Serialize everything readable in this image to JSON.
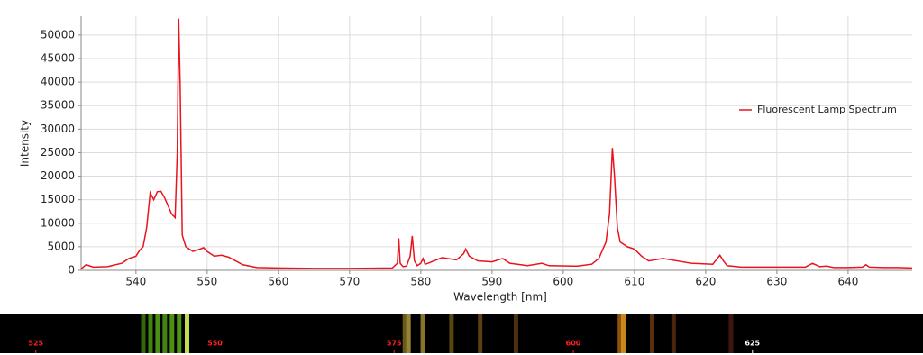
{
  "chart_data": [
    {
      "type": "line",
      "x_label": "Wavelength [nm]",
      "y_label": "Intensity",
      "xlim": [
        532.3,
        649
      ],
      "ylim": [
        0,
        54000
      ],
      "xticks": [
        540,
        550,
        560,
        570,
        580,
        590,
        600,
        610,
        620,
        630,
        640
      ],
      "yticks": [
        0,
        5000,
        10000,
        15000,
        20000,
        25000,
        30000,
        35000,
        40000,
        45000,
        50000
      ],
      "grid": true,
      "legend": "right",
      "x": [
        532.3,
        533,
        534,
        536,
        538,
        539,
        540,
        540.5,
        541,
        541.5,
        542,
        542.5,
        543,
        543.5,
        544,
        545,
        545.5,
        545.8,
        546,
        546.2,
        546.5,
        547,
        548,
        549,
        549.5,
        550,
        551,
        552,
        553,
        554,
        555,
        557,
        560,
        565,
        570,
        576,
        576.7,
        576.9,
        577.1,
        577.5,
        578,
        578.5,
        578.8,
        579.1,
        579.5,
        580,
        580.3,
        580.6,
        581,
        583,
        585,
        586,
        586.3,
        586.8,
        588,
        590,
        591.5,
        592.5,
        595,
        597,
        598,
        602,
        604,
        605,
        606,
        606.5,
        606.9,
        607.2,
        607.6,
        608,
        609,
        610,
        611,
        612,
        614,
        616,
        618,
        621,
        622,
        622.5,
        623,
        625,
        630,
        634,
        635,
        636,
        637,
        638,
        640,
        642,
        642.5,
        643,
        645,
        647,
        649
      ],
      "series": [
        {
          "name": "Fluorescent Lamp Spectrum",
          "color": "#e8141e",
          "values": [
            300,
            1200,
            700,
            800,
            1500,
            2500,
            3000,
            4200,
            5000,
            9000,
            16500,
            15000,
            16700,
            16800,
            15500,
            12000,
            11200,
            25000,
            53500,
            40000,
            7500,
            5000,
            4000,
            4500,
            4800,
            4000,
            3000,
            3200,
            2800,
            2000,
            1200,
            600,
            500,
            400,
            400,
            500,
            1500,
            6800,
            1500,
            800,
            900,
            3000,
            7300,
            2000,
            1000,
            1500,
            2500,
            1300,
            1500,
            2700,
            2200,
            3500,
            4500,
            3000,
            2000,
            1800,
            2500,
            1500,
            1000,
            1500,
            1000,
            900,
            1300,
            2500,
            6000,
            12000,
            26000,
            20000,
            9000,
            6000,
            5000,
            4500,
            3000,
            2000,
            2500,
            2000,
            1500,
            1300,
            3200,
            2000,
            1000,
            700,
            700,
            700,
            1500,
            800,
            900,
            600,
            600,
            700,
            1200,
            700,
            600,
            600,
            500
          ]
        }
      ]
    },
    {
      "type": "spectrum",
      "xlim": [
        520,
        648.8
      ],
      "xticks": [
        525,
        550,
        575,
        600,
        625
      ],
      "tick_colors": [
        "#ff2020",
        "#ff2020",
        "#ff2020",
        "#ff2020",
        "#ffffff"
      ],
      "x": [
        540,
        541,
        542,
        543,
        544,
        545,
        546.1,
        576.5,
        577,
        579,
        583,
        587,
        592,
        606.5,
        607,
        611,
        614,
        622
      ],
      "colors": [
        "#3a7a10",
        "#4a9a15",
        "#5aa818",
        "#4f9a16",
        "#58a818",
        "#5cb01a",
        "#e8ff60",
        "#7a6a20",
        "#b09a40",
        "#a08a30",
        "#6a5018",
        "#6a4a15",
        "#5a3a12",
        "#a86010",
        "#e8a020",
        "#6a3a10",
        "#5a2a10",
        "#4a1a10"
      ]
    }
  ]
}
